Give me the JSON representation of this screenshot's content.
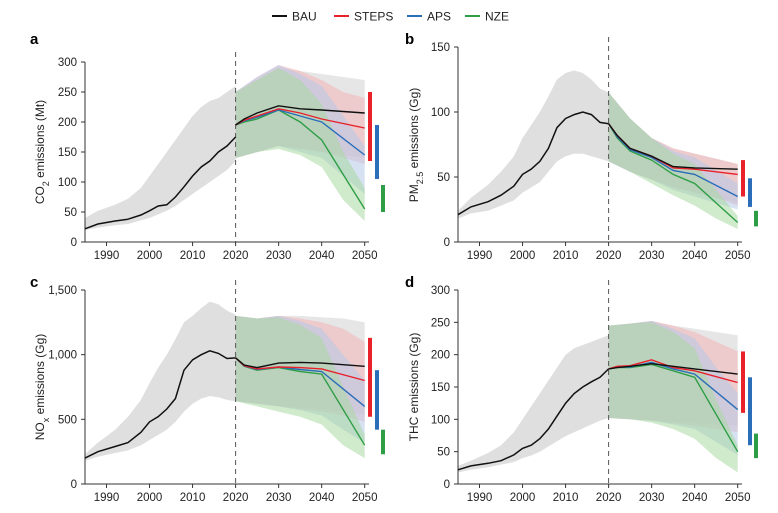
{
  "legend": [
    {
      "name": "BAU",
      "color": "#111111"
    },
    {
      "name": "STEPS",
      "color": "#e8212b"
    },
    {
      "name": "APS",
      "color": "#2a6db8"
    },
    {
      "name": "NZE",
      "color": "#2e9e46"
    }
  ],
  "chart_data": [
    {
      "panel": "a",
      "type": "line",
      "ylabel": "CO2 emissions (Mt)",
      "ylabel_main": "CO",
      "ylabel_sub": "2",
      "ylabel_rest": " emissions (Mt)",
      "xlim": [
        1985,
        2051
      ],
      "ylim": [
        0,
        300
      ],
      "xticks": [
        1990,
        2000,
        2010,
        2020,
        2030,
        2040,
        2050
      ],
      "yticks": [
        0,
        50,
        100,
        150,
        200,
        250,
        300
      ],
      "ytick_labels": [
        "0",
        "50",
        "100",
        "150",
        "200",
        "250",
        "300"
      ],
      "reference_line_x": 2020,
      "history": {
        "x": [
          1985,
          1988,
          1992,
          1995,
          1998,
          2000,
          2002,
          2004,
          2006,
          2008,
          2010,
          2012,
          2014,
          2016,
          2018,
          2020
        ],
        "bau": [
          22,
          30,
          35,
          38,
          45,
          52,
          60,
          62,
          75,
          92,
          110,
          125,
          135,
          150,
          160,
          175
        ],
        "upper": [
          40,
          52,
          62,
          72,
          90,
          110,
          130,
          150,
          170,
          190,
          210,
          225,
          235,
          240,
          250,
          260
        ],
        "lower": [
          20,
          24,
          28,
          30,
          36,
          40,
          46,
          52,
          60,
          70,
          80,
          90,
          100,
          110,
          120,
          135
        ]
      },
      "projections": {
        "x": [
          2020,
          2022,
          2025,
          2030,
          2035,
          2040,
          2050
        ],
        "BAU": [
          195,
          205,
          215,
          227,
          222,
          220,
          215
        ],
        "STEPS": [
          195,
          203,
          210,
          222,
          215,
          205,
          190
        ],
        "APS": [
          195,
          202,
          208,
          220,
          210,
          200,
          145
        ],
        "NZE": [
          195,
          200,
          205,
          220,
          200,
          170,
          55
        ]
      },
      "bands": {
        "x": [
          2020,
          2025,
          2030,
          2035,
          2040,
          2045,
          2050
        ],
        "BAU_upper": [
          250,
          270,
          290,
          285,
          280,
          275,
          270
        ],
        "BAU_lower": [
          140,
          150,
          160,
          155,
          150,
          145,
          140
        ],
        "STEPS_upper": [
          250,
          275,
          295,
          285,
          270,
          250,
          240
        ],
        "STEPS_lower": [
          140,
          150,
          160,
          155,
          150,
          140,
          130
        ],
        "APS_upper": [
          250,
          275,
          295,
          280,
          260,
          210,
          160
        ],
        "APS_lower": [
          140,
          150,
          160,
          150,
          140,
          110,
          80
        ],
        "NZE_upper": [
          250,
          270,
          290,
          270,
          230,
          150,
          90
        ],
        "NZE_lower": [
          140,
          150,
          155,
          145,
          125,
          70,
          35
        ]
      },
      "range_bars_2050": {
        "STEPS": [
          135,
          250
        ],
        "APS": [
          105,
          195
        ],
        "NZE": [
          50,
          95
        ]
      }
    },
    {
      "panel": "b",
      "type": "line",
      "ylabel": "PM2.5 emissions (Gg)",
      "ylabel_main": "PM",
      "ylabel_sub": "2.5",
      "ylabel_rest": " emissions (Gg)",
      "xlim": [
        1985,
        2051
      ],
      "ylim": [
        0,
        150
      ],
      "xticks": [
        1990,
        2000,
        2010,
        2020,
        2030,
        2040,
        2050
      ],
      "yticks": [
        0,
        50,
        100,
        150
      ],
      "ytick_labels": [
        "0",
        "50",
        "100",
        "150"
      ],
      "reference_line_x": 2020,
      "history": {
        "x": [
          1985,
          1988,
          1992,
          1995,
          1998,
          2000,
          2002,
          2004,
          2006,
          2008,
          2010,
          2012,
          2014,
          2016,
          2018,
          2020
        ],
        "bau": [
          21,
          27,
          31,
          36,
          43,
          52,
          56,
          62,
          72,
          88,
          95,
          98,
          100,
          98,
          92,
          91
        ],
        "upper": [
          24,
          34,
          44,
          54,
          66,
          80,
          90,
          100,
          112,
          125,
          130,
          132,
          130,
          125,
          118,
          115
        ],
        "lower": [
          18,
          22,
          24,
          28,
          32,
          38,
          42,
          46,
          54,
          62,
          66,
          68,
          68,
          66,
          64,
          62
        ]
      },
      "projections": {
        "x": [
          2020,
          2022,
          2025,
          2030,
          2035,
          2040,
          2050
        ],
        "BAU": [
          91,
          82,
          72,
          66,
          58,
          57,
          56
        ],
        "STEPS": [
          91,
          82,
          72,
          66,
          57,
          56,
          52
        ],
        "APS": [
          91,
          81,
          71,
          65,
          55,
          52,
          35
        ],
        "NZE": [
          91,
          80,
          70,
          63,
          52,
          45,
          15
        ]
      },
      "bands": {
        "x": [
          2020,
          2025,
          2030,
          2035,
          2040,
          2045,
          2050
        ],
        "BAU_upper": [
          115,
          95,
          80,
          72,
          68,
          64,
          60
        ],
        "BAU_lower": [
          62,
          54,
          48,
          42,
          38,
          34,
          30
        ],
        "STEPS_upper": [
          115,
          95,
          80,
          72,
          68,
          64,
          60
        ],
        "STEPS_lower": [
          62,
          54,
          48,
          42,
          38,
          34,
          28
        ],
        "APS_upper": [
          115,
          95,
          80,
          70,
          65,
          55,
          45
        ],
        "APS_lower": [
          62,
          54,
          48,
          40,
          35,
          30,
          25
        ],
        "NZE_upper": [
          115,
          95,
          80,
          68,
          60,
          40,
          20
        ],
        "NZE_lower": [
          62,
          54,
          45,
          36,
          28,
          18,
          10
        ]
      },
      "range_bars_2050": {
        "STEPS": [
          35,
          63
        ],
        "APS": [
          27,
          49
        ],
        "NZE": [
          12,
          24
        ]
      }
    },
    {
      "panel": "c",
      "type": "line",
      "ylabel": "NOx emissions (Gg)",
      "ylabel_main": "NO",
      "ylabel_sub": "x",
      "ylabel_rest": " emissions (Gg)",
      "xlim": [
        1985,
        2051
      ],
      "ylim": [
        0,
        1500
      ],
      "xticks": [
        1990,
        2000,
        2010,
        2020,
        2030,
        2040,
        2050
      ],
      "yticks": [
        0,
        500,
        1000,
        1500
      ],
      "ytick_labels": [
        "0",
        "500",
        "1,000",
        "1,500"
      ],
      "reference_line_x": 2020,
      "history": {
        "x": [
          1985,
          1988,
          1992,
          1995,
          1998,
          2000,
          2002,
          2004,
          2006,
          2008,
          2010,
          2012,
          2014,
          2016,
          2018,
          2020
        ],
        "bau": [
          200,
          250,
          290,
          320,
          400,
          480,
          520,
          580,
          660,
          880,
          960,
          1000,
          1030,
          1010,
          970,
          975
        ],
        "upper": [
          230,
          320,
          420,
          520,
          650,
          780,
          900,
          1000,
          1120,
          1250,
          1300,
          1360,
          1410,
          1390,
          1340,
          1310
        ],
        "lower": [
          180,
          210,
          240,
          260,
          300,
          340,
          380,
          420,
          480,
          560,
          620,
          660,
          680,
          670,
          650,
          640
        ]
      },
      "projections": {
        "x": [
          2020,
          2022,
          2025,
          2030,
          2035,
          2040,
          2050
        ],
        "BAU": [
          975,
          920,
          900,
          935,
          940,
          935,
          910
        ],
        "STEPS": [
          975,
          915,
          890,
          905,
          900,
          890,
          800
        ],
        "APS": [
          975,
          912,
          885,
          905,
          885,
          870,
          600
        ],
        "NZE": [
          975,
          910,
          880,
          900,
          870,
          850,
          300
        ]
      },
      "bands": {
        "x": [
          2020,
          2025,
          2030,
          2035,
          2040,
          2045,
          2050
        ],
        "BAU_upper": [
          1300,
          1280,
          1300,
          1300,
          1290,
          1280,
          1250
        ],
        "BAU_lower": [
          640,
          620,
          600,
          590,
          580,
          560,
          540
        ],
        "STEPS_upper": [
          1300,
          1280,
          1300,
          1280,
          1250,
          1200,
          1100
        ],
        "STEPS_lower": [
          640,
          620,
          600,
          580,
          560,
          530,
          480
        ],
        "APS_upper": [
          1300,
          1280,
          1300,
          1260,
          1200,
          1000,
          800
        ],
        "APS_lower": [
          640,
          620,
          600,
          570,
          530,
          420,
          320
        ],
        "NZE_upper": [
          1300,
          1280,
          1290,
          1230,
          1130,
          750,
          380
        ],
        "NZE_lower": [
          640,
          600,
          560,
          520,
          460,
          300,
          200
        ]
      },
      "range_bars_2050": {
        "STEPS": [
          520,
          1130
        ],
        "APS": [
          420,
          880
        ],
        "NZE": [
          230,
          420
        ]
      }
    },
    {
      "panel": "d",
      "type": "line",
      "ylabel": "THC emissions (Gg)",
      "ylabel_main": "THC emissions (Gg)",
      "ylabel_sub": "",
      "ylabel_rest": "",
      "xlim": [
        1985,
        2051
      ],
      "ylim": [
        0,
        300
      ],
      "xticks": [
        1990,
        2000,
        2010,
        2020,
        2030,
        2040,
        2050
      ],
      "yticks": [
        0,
        50,
        100,
        150,
        200,
        250,
        300
      ],
      "ytick_labels": [
        "0",
        "50",
        "100",
        "150",
        "200",
        "250",
        "300"
      ],
      "reference_line_x": 2020,
      "history": {
        "x": [
          1985,
          1988,
          1992,
          1995,
          1998,
          2000,
          2002,
          2004,
          2006,
          2008,
          2010,
          2012,
          2014,
          2016,
          2018,
          2020
        ],
        "bau": [
          22,
          28,
          32,
          36,
          45,
          55,
          60,
          70,
          85,
          105,
          125,
          140,
          150,
          158,
          165,
          178
        ],
        "upper": [
          28,
          36,
          48,
          60,
          80,
          100,
          120,
          140,
          160,
          180,
          200,
          210,
          215,
          220,
          225,
          230
        ],
        "lower": [
          18,
          22,
          26,
          30,
          34,
          40,
          44,
          50,
          58,
          66,
          74,
          80,
          86,
          92,
          98,
          102
        ]
      },
      "projections": {
        "x": [
          2020,
          2022,
          2025,
          2030,
          2035,
          2040,
          2050
        ],
        "BAU": [
          178,
          180,
          182,
          186,
          182,
          178,
          170
        ],
        "STEPS": [
          178,
          182,
          183,
          192,
          180,
          175,
          157
        ],
        "APS": [
          178,
          181,
          181,
          188,
          178,
          170,
          115
        ],
        "NZE": [
          178,
          180,
          180,
          185,
          175,
          165,
          50
        ]
      },
      "bands": {
        "x": [
          2020,
          2025,
          2030,
          2035,
          2040,
          2045,
          2050
        ],
        "BAU_upper": [
          245,
          248,
          252,
          245,
          240,
          235,
          230
        ],
        "BAU_lower": [
          102,
          100,
          98,
          96,
          94,
          92,
          90
        ],
        "STEPS_upper": [
          245,
          248,
          252,
          245,
          235,
          220,
          205
        ],
        "STEPS_lower": [
          102,
          100,
          98,
          94,
          90,
          85,
          80
        ],
        "APS_upper": [
          245,
          248,
          252,
          240,
          225,
          180,
          140
        ],
        "APS_lower": [
          102,
          100,
          98,
          92,
          85,
          65,
          45
        ],
        "NZE_upper": [
          245,
          248,
          250,
          235,
          210,
          130,
          60
        ],
        "NZE_lower": [
          102,
          100,
          95,
          85,
          70,
          40,
          18
        ]
      },
      "range_bars_2050": {
        "STEPS": [
          110,
          205
        ],
        "APS": [
          60,
          165
        ],
        "NZE": [
          40,
          78
        ]
      }
    }
  ]
}
